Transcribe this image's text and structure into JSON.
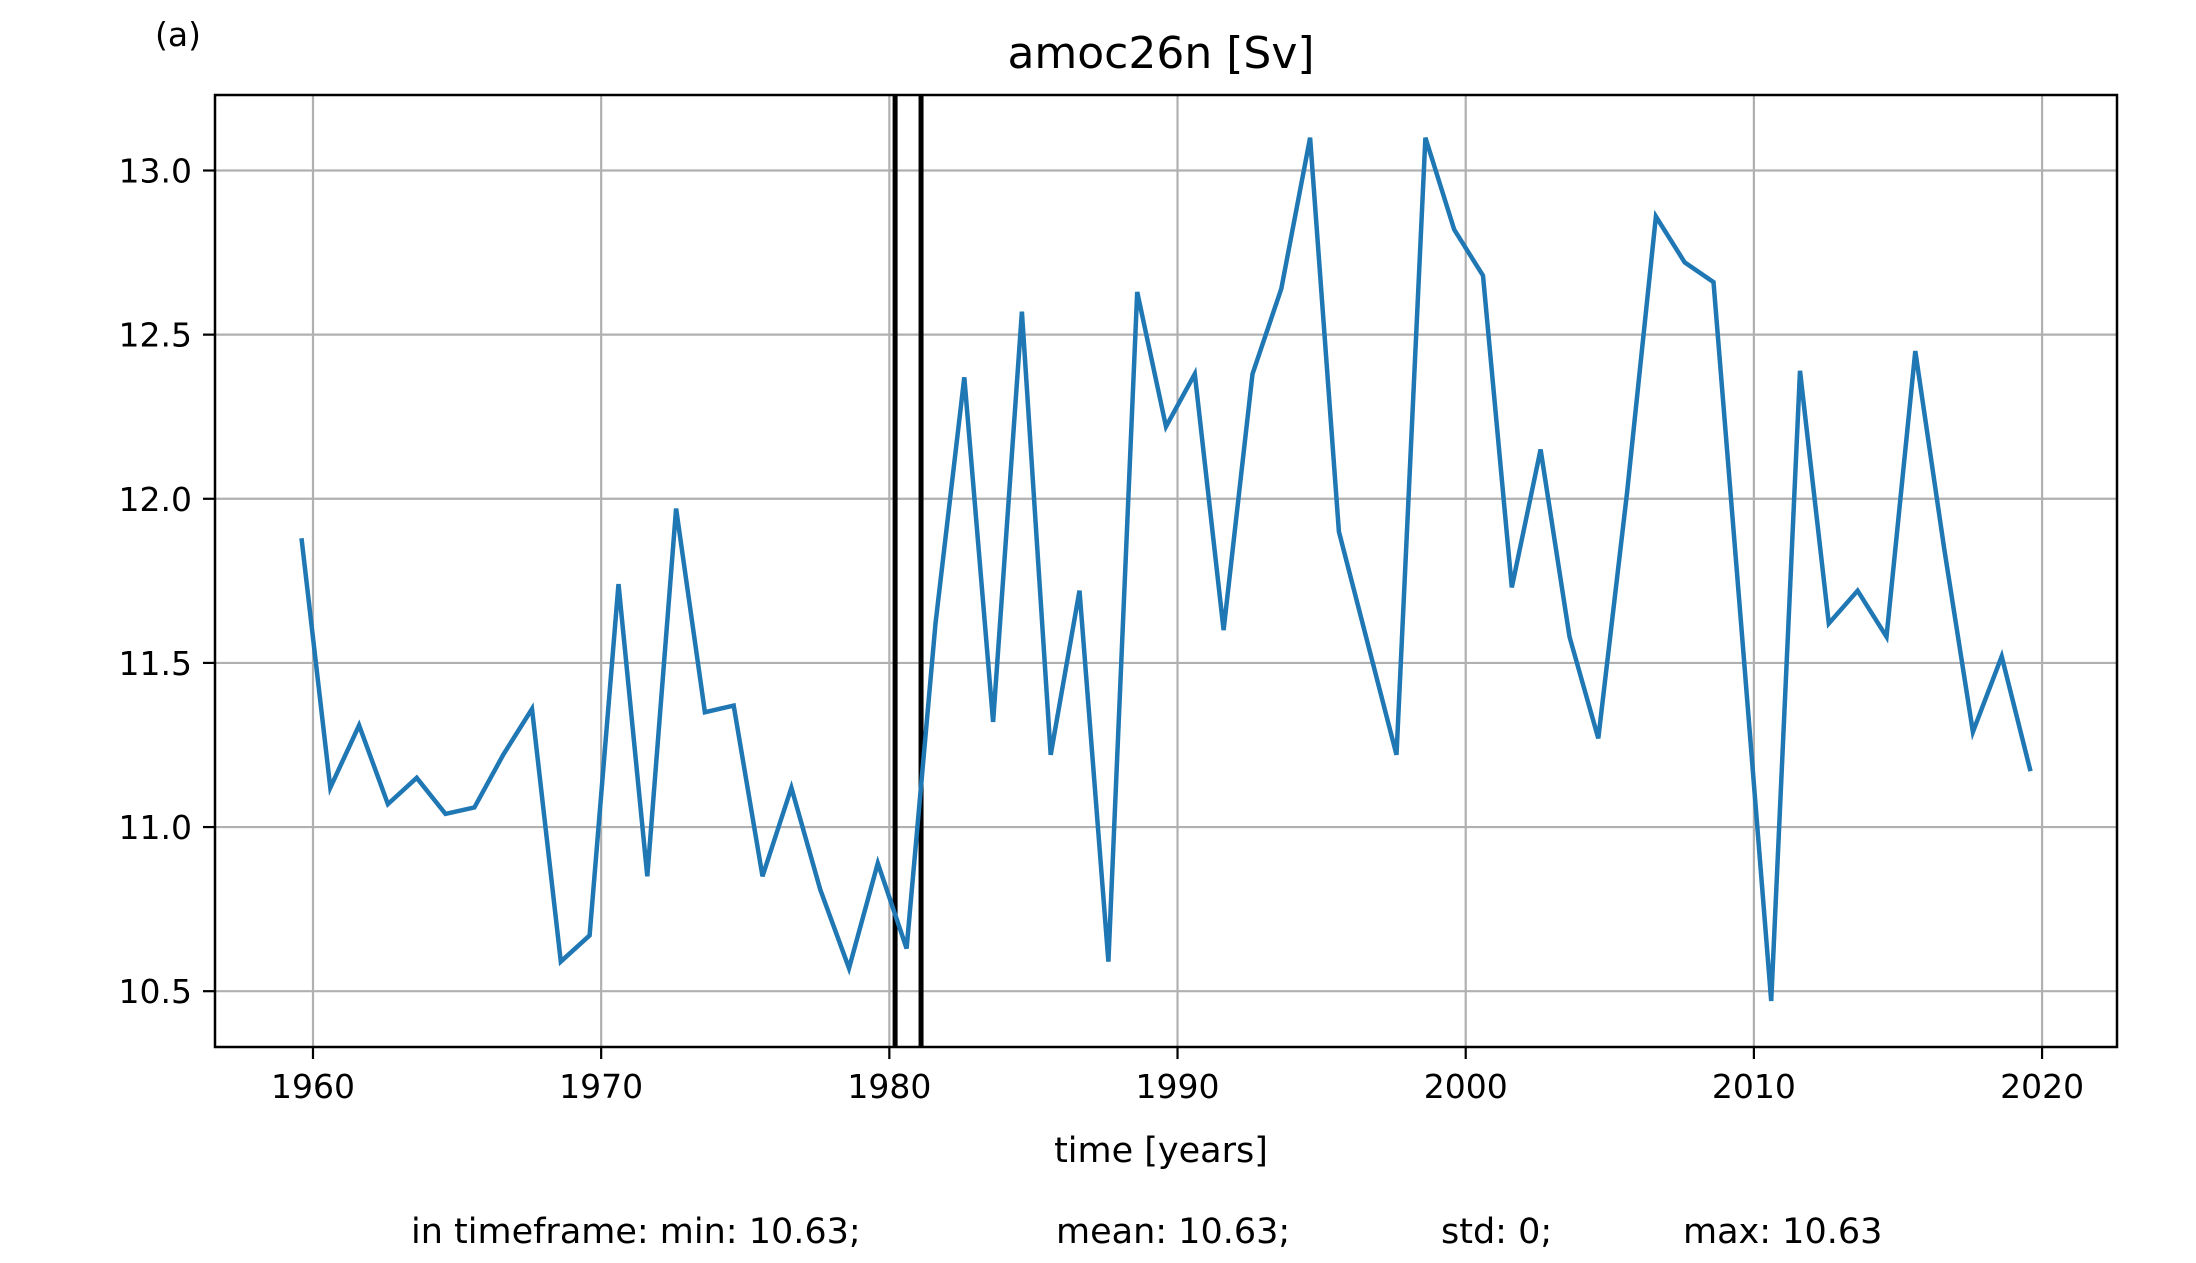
{
  "panel_label": "(a)",
  "chart_data": {
    "type": "line",
    "title": "amoc26n [Sv]",
    "xlabel": "time [years]",
    "ylabel": "",
    "xlim": [
      1956.6,
      2022.6
    ],
    "ylim": [
      10.33,
      13.23
    ],
    "x_ticks": [
      1960,
      1970,
      1980,
      1990,
      2000,
      2010,
      2020
    ],
    "x_tick_labels": [
      "1960",
      "1970",
      "1980",
      "1990",
      "2000",
      "2010",
      "2020"
    ],
    "y_ticks": [
      10.5,
      11.0,
      11.5,
      12.0,
      12.5,
      13.0
    ],
    "y_tick_labels": [
      "10.5",
      "11.0",
      "11.5",
      "12.0",
      "12.5",
      "13.0"
    ],
    "grid": true,
    "series": [
      {
        "color": "#1f77b4",
        "x": [
          1959.6,
          1960.6,
          1961.6,
          1962.6,
          1963.6,
          1964.6,
          1965.6,
          1966.6,
          1967.6,
          1968.6,
          1969.6,
          1970.6,
          1971.6,
          1972.6,
          1973.6,
          1974.6,
          1975.6,
          1976.6,
          1977.6,
          1978.6,
          1979.6,
          1980.6,
          1981.6,
          1982.6,
          1983.6,
          1984.6,
          1985.6,
          1986.6,
          1987.6,
          1988.6,
          1989.6,
          1990.6,
          1991.6,
          1992.6,
          1993.6,
          1994.6,
          1995.6,
          1996.6,
          1997.6,
          1998.6,
          1999.6,
          2000.6,
          2001.6,
          2002.6,
          2003.6,
          2004.6,
          2005.6,
          2006.6,
          2007.6,
          2008.6,
          2009.6,
          2010.6,
          2011.6,
          2012.6,
          2013.6,
          2014.6,
          2015.6,
          2016.6,
          2017.6,
          2018.6,
          2019.6
        ],
        "values": [
          11.88,
          11.12,
          11.31,
          11.07,
          11.15,
          11.04,
          11.06,
          11.22,
          11.36,
          10.59,
          10.67,
          11.74,
          10.85,
          11.97,
          11.35,
          11.37,
          10.85,
          11.12,
          10.81,
          10.57,
          10.89,
          10.63,
          11.62,
          12.37,
          11.32,
          12.57,
          11.22,
          11.72,
          10.59,
          12.63,
          12.22,
          12.38,
          11.6,
          12.38,
          12.64,
          13.1,
          11.9,
          11.56,
          11.22,
          13.1,
          12.82,
          12.68,
          11.73,
          12.15,
          11.58,
          11.27,
          12.02,
          12.86,
          12.72,
          12.66,
          11.57,
          10.47,
          12.39,
          11.62,
          11.72,
          11.58,
          12.45,
          11.85,
          11.29,
          11.52,
          11.17
        ]
      }
    ],
    "vertical_lines": [
      1980.2,
      1981.1
    ],
    "vertical_line_color": "#000000"
  },
  "stats": {
    "min_text": "in timeframe: min: 10.63;",
    "mean_text": "mean: 10.63;",
    "std_text": "std: 0;",
    "max_text": "max: 10.63"
  }
}
